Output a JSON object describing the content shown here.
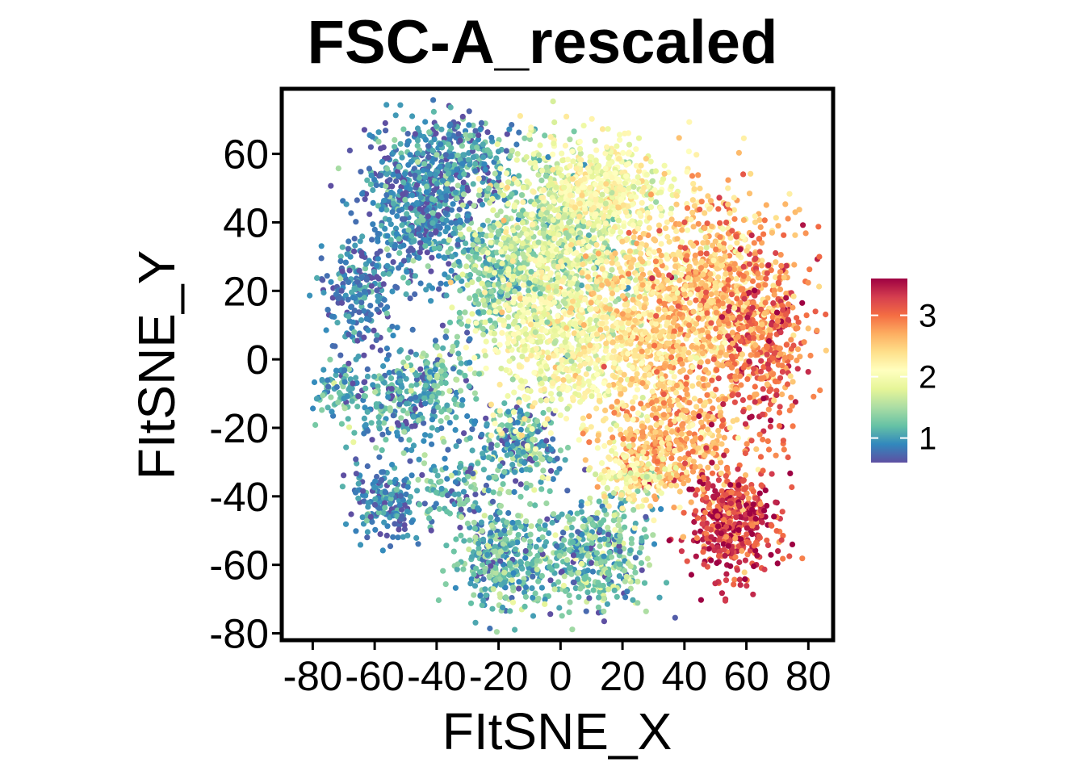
{
  "chart_data": {
    "type": "scatter",
    "title": "FSC-A_rescaled",
    "xlabel": "FItSNE_X",
    "ylabel": "FItSNE_Y",
    "xlim": [
      -90,
      88
    ],
    "ylim": [
      -82,
      79
    ],
    "x_ticks": [
      -80,
      -60,
      -40,
      -20,
      0,
      20,
      40,
      60,
      80
    ],
    "x_tick_labels": [
      "-80",
      "-60",
      "-40",
      "-20",
      "0",
      "20",
      "40",
      "60",
      "80"
    ],
    "y_ticks": [
      -80,
      -60,
      -40,
      -20,
      0,
      20,
      40,
      60
    ],
    "y_tick_labels": [
      "-80",
      "-60",
      "-40",
      "-20",
      "0",
      "20",
      "40",
      "60"
    ],
    "grid": false,
    "legend": {
      "type": "colorbar",
      "placement": "right",
      "ticks": [
        1,
        2,
        3
      ],
      "tick_labels": [
        "1",
        "2",
        "3"
      ],
      "range": [
        0.6,
        3.6
      ]
    },
    "colorscale": [
      "#5E4FA2",
      "#3288BD",
      "#66C2A5",
      "#ABDDA4",
      "#E6F598",
      "#FFFFBF",
      "#FEE08B",
      "#FDAE61",
      "#F46D43",
      "#D53E4F",
      "#9E0142"
    ],
    "clusters": [
      {
        "cx": -45,
        "cy": 45,
        "sx": 10,
        "sy": 12,
        "n": 650,
        "value": 0.9,
        "spread": 0.25
      },
      {
        "cx": -32,
        "cy": 58,
        "sx": 9,
        "sy": 6,
        "n": 220,
        "value": 1.0,
        "spread": 0.25
      },
      {
        "cx": -65,
        "cy": 18,
        "sx": 6,
        "sy": 8,
        "n": 200,
        "value": 0.85,
        "spread": 0.2
      },
      {
        "cx": -72,
        "cy": -8,
        "sx": 4,
        "sy": 4,
        "n": 70,
        "value": 1.1,
        "spread": 0.25
      },
      {
        "cx": -52,
        "cy": -12,
        "sx": 9,
        "sy": 8,
        "n": 250,
        "value": 1.0,
        "spread": 0.3
      },
      {
        "cx": -38,
        "cy": -3,
        "sx": 5,
        "sy": 7,
        "n": 100,
        "value": 1.2,
        "spread": 0.3
      },
      {
        "cx": -56,
        "cy": -42,
        "sx": 6,
        "sy": 5,
        "n": 180,
        "value": 0.85,
        "spread": 0.2
      },
      {
        "cx": -35,
        "cy": -38,
        "sx": 6,
        "sy": 5,
        "n": 100,
        "value": 1.1,
        "spread": 0.3
      },
      {
        "cx": -14,
        "cy": -25,
        "sx": 7,
        "sy": 7,
        "n": 260,
        "value": 1.1,
        "spread": 0.35
      },
      {
        "cx": -18,
        "cy": -58,
        "sx": 8,
        "sy": 8,
        "n": 380,
        "value": 1.15,
        "spread": 0.3
      },
      {
        "cx": 12,
        "cy": -57,
        "sx": 8,
        "sy": 8,
        "n": 380,
        "value": 1.25,
        "spread": 0.35
      },
      {
        "cx": -22,
        "cy": 25,
        "sx": 6,
        "sy": 10,
        "n": 280,
        "value": 1.3,
        "spread": 0.25
      },
      {
        "cx": 0,
        "cy": 35,
        "sx": 12,
        "sy": 14,
        "n": 850,
        "value": 1.7,
        "spread": 0.3
      },
      {
        "cx": 0,
        "cy": 5,
        "sx": 12,
        "sy": 12,
        "n": 650,
        "value": 2.0,
        "spread": 0.25
      },
      {
        "cx": 15,
        "cy": 50,
        "sx": 10,
        "sy": 7,
        "n": 420,
        "value": 2.05,
        "spread": 0.2
      },
      {
        "cx": 30,
        "cy": 10,
        "sx": 10,
        "sy": 15,
        "n": 650,
        "value": 2.4,
        "spread": 0.25
      },
      {
        "cx": 35,
        "cy": -25,
        "sx": 10,
        "sy": 8,
        "n": 450,
        "value": 2.6,
        "spread": 0.3
      },
      {
        "cx": 50,
        "cy": 20,
        "sx": 10,
        "sy": 15,
        "n": 700,
        "value": 2.6,
        "spread": 0.3
      },
      {
        "cx": 65,
        "cy": 5,
        "sx": 8,
        "sy": 15,
        "n": 450,
        "value": 3.0,
        "spread": 0.3
      },
      {
        "cx": 55,
        "cy": -48,
        "sx": 7,
        "sy": 8,
        "n": 420,
        "value": 3.25,
        "spread": 0.3
      },
      {
        "cx": 22,
        "cy": -35,
        "sx": 6,
        "sy": 4,
        "n": 120,
        "value": 2.1,
        "spread": 0.3
      }
    ]
  }
}
